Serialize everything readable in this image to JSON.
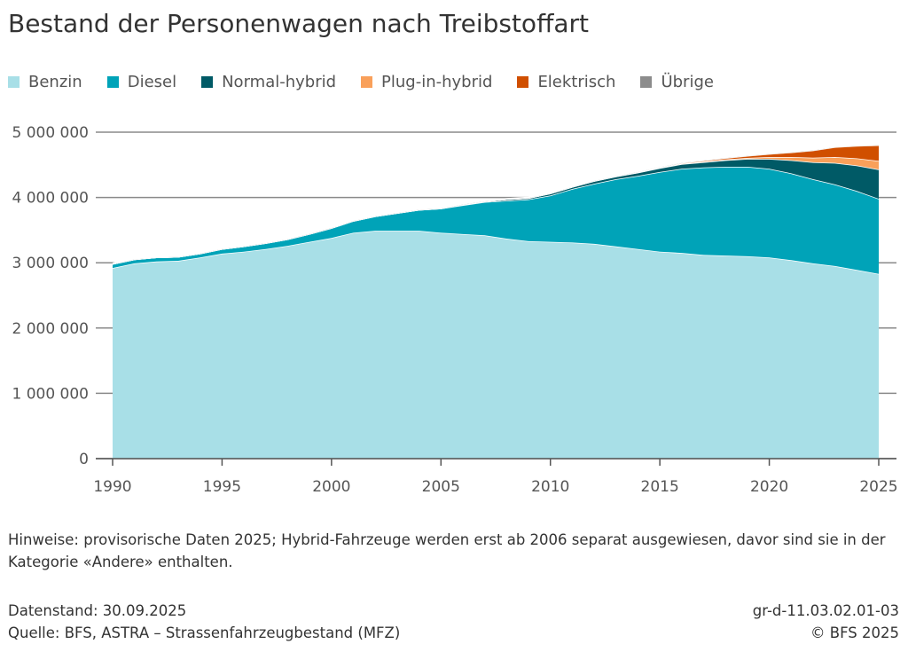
{
  "chart_data": {
    "type": "area",
    "stacked": true,
    "title": "Bestand der Personenwagen nach Treibstoffart",
    "xlabel": "",
    "ylabel": "",
    "xlim": [
      1990,
      2025
    ],
    "ylim": [
      0,
      5000000
    ],
    "x_ticks": [
      "1990",
      "1995",
      "2000",
      "2005",
      "2010",
      "2015",
      "2020",
      "2025"
    ],
    "y_ticks": [
      "0",
      "1 000 000",
      "2 000 000",
      "3 000 000",
      "4 000 000",
      "5 000 000"
    ],
    "legend_position": "top-left",
    "grid": "horizontal",
    "x": [
      1990,
      1991,
      1992,
      1993,
      1994,
      1995,
      1996,
      1997,
      1998,
      1999,
      2000,
      2001,
      2002,
      2003,
      2004,
      2005,
      2006,
      2007,
      2008,
      2009,
      2010,
      2011,
      2012,
      2013,
      2014,
      2015,
      2016,
      2017,
      2018,
      2019,
      2020,
      2021,
      2022,
      2023,
      2024,
      2025
    ],
    "series": [
      {
        "name": "Benzin",
        "color": "#a8dfe7",
        "values": [
          2920000,
          2990000,
          3020000,
          3030000,
          3080000,
          3140000,
          3170000,
          3210000,
          3260000,
          3320000,
          3380000,
          3460000,
          3490000,
          3490000,
          3490000,
          3460000,
          3440000,
          3420000,
          3370000,
          3330000,
          3320000,
          3310000,
          3290000,
          3250000,
          3210000,
          3170000,
          3150000,
          3120000,
          3110000,
          3100000,
          3080000,
          3040000,
          2990000,
          2950000,
          2890000,
          2830000
        ]
      },
      {
        "name": "Diesel",
        "color": "#00a3b8",
        "values": [
          60000,
          60000,
          60000,
          60000,
          60000,
          70000,
          80000,
          90000,
          100000,
          120000,
          150000,
          180000,
          220000,
          270000,
          320000,
          370000,
          440000,
          510000,
          580000,
          640000,
          710000,
          820000,
          920000,
          1030000,
          1120000,
          1220000,
          1290000,
          1340000,
          1360000,
          1370000,
          1360000,
          1330000,
          1290000,
          1250000,
          1210000,
          1150000
        ]
      },
      {
        "name": "Normal-hybrid",
        "color": "#005a66",
        "values": [
          0,
          0,
          0,
          0,
          0,
          0,
          0,
          0,
          0,
          0,
          0,
          0,
          0,
          0,
          0,
          0,
          10000,
          10000,
          20000,
          20000,
          30000,
          30000,
          40000,
          40000,
          50000,
          60000,
          70000,
          80000,
          100000,
          120000,
          150000,
          200000,
          260000,
          330000,
          390000,
          450000
        ]
      },
      {
        "name": "Plug-in-hybrid",
        "color": "#f9a05a",
        "values": [
          0,
          0,
          0,
          0,
          0,
          0,
          0,
          0,
          0,
          0,
          0,
          0,
          0,
          0,
          0,
          0,
          0,
          0,
          0,
          0,
          0,
          0,
          0,
          2000,
          4000,
          6000,
          8000,
          10000,
          12000,
          16000,
          30000,
          50000,
          70000,
          90000,
          110000,
          130000
        ]
      },
      {
        "name": "Elektrisch",
        "color": "#d04f00",
        "values": [
          0,
          0,
          0,
          0,
          0,
          0,
          0,
          0,
          0,
          0,
          0,
          0,
          1000,
          1000,
          1000,
          1000,
          1000,
          1000,
          1000,
          1000,
          1000,
          1000,
          2000,
          3000,
          5000,
          7000,
          10000,
          15000,
          20000,
          30000,
          45000,
          70000,
          110000,
          150000,
          190000,
          240000
        ]
      },
      {
        "name": "Übrige",
        "color": "#8c8c8c",
        "values": [
          10000,
          10000,
          10000,
          10000,
          10000,
          10000,
          10000,
          10000,
          10000,
          10000,
          10000,
          10000,
          10000,
          10000,
          10000,
          10000,
          10000,
          10000,
          10000,
          10000,
          10000,
          10000,
          10000,
          10000,
          10000,
          10000,
          10000,
          10000,
          10000,
          10000,
          10000,
          10000,
          10000,
          10000,
          10000,
          10000
        ]
      }
    ]
  },
  "notes": "Hinweise: provisorische Daten 2025; Hybrid-Fahrzeuge werden erst ab 2006 separat ausgewiesen, davor sind sie in der Kategorie «Andere» enthalten.",
  "footer": {
    "datenstand": "Datenstand: 30.09.2025",
    "quelle": "Quelle: BFS, ASTRA – Strassenfahrzeugbestand (MFZ)",
    "code": "gr-d-11.03.02.01-03",
    "copyright": "© BFS 2025"
  }
}
